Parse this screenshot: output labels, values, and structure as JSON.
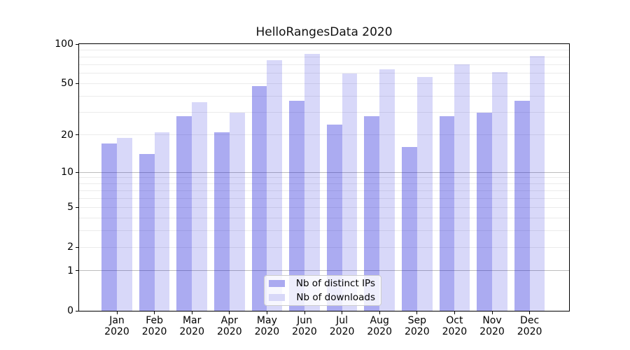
{
  "title": "HelloRangesData 2020",
  "colors": {
    "bar_ips": "rgba(10,10,215,0.34)",
    "bar_downloads": "rgba(10,10,215,0.16)",
    "legend_swatch_ips": "#abaaf0",
    "legend_swatch_downloads": "#d8d8f8",
    "grid_major": "#bdbdbd",
    "grid_minor": "#ebebeb",
    "spine": "#000000",
    "text": "#000000"
  },
  "chart_data": {
    "type": "bar",
    "title": "HelloRangesData 2020",
    "categories": [
      {
        "month": "Jan",
        "year": "2020"
      },
      {
        "month": "Feb",
        "year": "2020"
      },
      {
        "month": "Mar",
        "year": "2020"
      },
      {
        "month": "Apr",
        "year": "2020"
      },
      {
        "month": "May",
        "year": "2020"
      },
      {
        "month": "Jun",
        "year": "2020"
      },
      {
        "month": "Jul",
        "year": "2020"
      },
      {
        "month": "Aug",
        "year": "2020"
      },
      {
        "month": "Sep",
        "year": "2020"
      },
      {
        "month": "Oct",
        "year": "2020"
      },
      {
        "month": "Nov",
        "year": "2020"
      },
      {
        "month": "Dec",
        "year": "2020"
      }
    ],
    "series": [
      {
        "name": "Nb of distinct IPs",
        "values": [
          17,
          14,
          28,
          21,
          48,
          37,
          24,
          28,
          16,
          28,
          30,
          37
        ]
      },
      {
        "name": "Nb of downloads",
        "values": [
          19,
          21,
          36,
          30,
          75,
          84,
          60,
          64,
          56,
          70,
          61,
          81
        ]
      }
    ],
    "xlabel": "",
    "ylabel": "",
    "yscale": "symlog: position proportional to log10(1+v)",
    "ylim": [
      0,
      100
    ],
    "yticks": [
      0,
      1,
      2,
      5,
      10,
      20,
      50,
      100
    ],
    "grid_major_at": [
      1,
      10
    ],
    "grid_minor_at": [
      2,
      3,
      4,
      5,
      6,
      7,
      8,
      9,
      20,
      30,
      40,
      50,
      60,
      70,
      80,
      90
    ],
    "grid": "on",
    "legend_position": "lower center"
  }
}
